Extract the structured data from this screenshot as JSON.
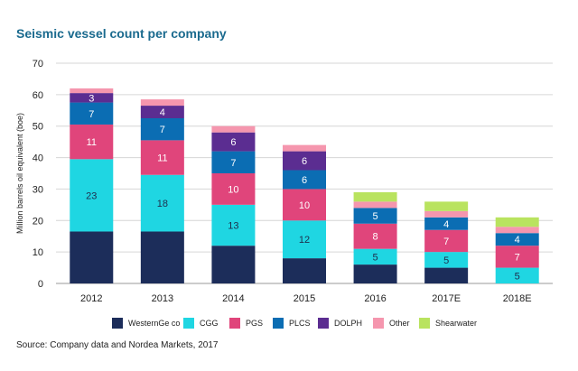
{
  "chart_data": {
    "type": "bar",
    "stacked": true,
    "title": "Seismic vessel count per company",
    "ylabel": "Million barrels oil equivalent (boe)",
    "xlabel": "",
    "ylim": [
      0,
      70
    ],
    "yticks": [
      0,
      10,
      20,
      30,
      40,
      50,
      60,
      70
    ],
    "grid": true,
    "legend_position": "bottom",
    "categories": [
      "2012",
      "2013",
      "2014",
      "2015",
      "2016",
      "2017E",
      "2018E"
    ],
    "series": [
      {
        "name": "WesternGe co",
        "color": "#1c2d5a",
        "values": [
          16.5,
          16.5,
          12,
          8,
          6,
          5,
          0
        ],
        "labels": [
          "",
          "",
          "",
          "",
          "",
          "",
          ""
        ]
      },
      {
        "name": "CGG",
        "color": "#1fd6e2",
        "values": [
          23,
          18,
          13,
          12,
          5,
          5,
          5
        ],
        "labels": [
          "23",
          "18",
          "13",
          "12",
          "5",
          "5",
          "5"
        ]
      },
      {
        "name": "PGS",
        "color": "#e0457b",
        "values": [
          11,
          11,
          10,
          10,
          8,
          7,
          7
        ],
        "labels": [
          "11",
          "11",
          "10",
          "10",
          "8",
          "7",
          "7"
        ]
      },
      {
        "name": "PLCS",
        "color": "#0b6db3",
        "values": [
          7,
          7,
          7,
          6,
          5,
          4,
          4
        ],
        "labels": [
          "7",
          "7",
          "7",
          "6",
          "5",
          "4",
          "4"
        ]
      },
      {
        "name": "DOLPH",
        "color": "#5b2d91",
        "values": [
          3,
          4,
          6,
          6,
          0,
          0,
          0
        ],
        "labels": [
          "3",
          "4",
          "6",
          "6",
          "",
          "",
          ""
        ]
      },
      {
        "name": "Other",
        "color": "#f596ae",
        "values": [
          1.5,
          2,
          2,
          2,
          2,
          2,
          2
        ],
        "labels": [
          "",
          "",
          "",
          "",
          "",
          "",
          ""
        ]
      },
      {
        "name": "Shearwater",
        "color": "#b9e35f",
        "values": [
          0,
          0,
          0,
          0,
          3,
          3,
          3
        ],
        "labels": [
          "",
          "",
          "",
          "",
          "",
          "",
          ""
        ]
      }
    ]
  },
  "header": {
    "title": "Seismic vessel count per company"
  },
  "footer": {
    "source": "Source: Company data and Nordea Markets, 2017"
  }
}
